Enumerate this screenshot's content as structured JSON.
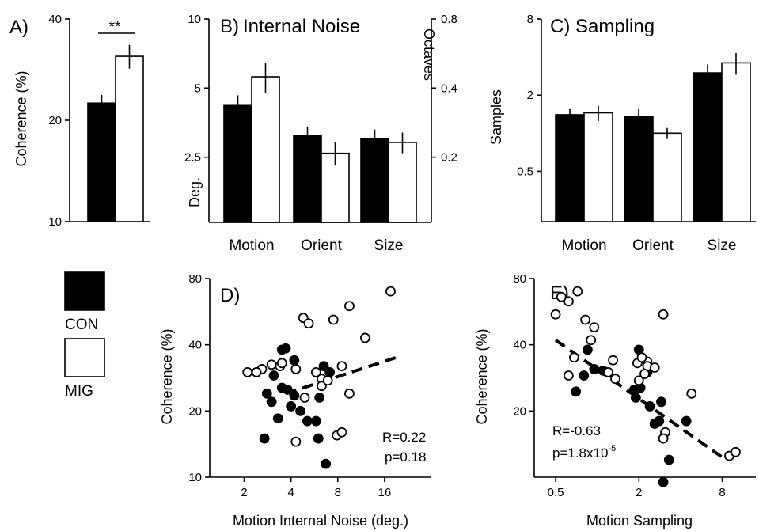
{
  "colors": {
    "CON": "#000000",
    "MIG": "#ffffff",
    "stroke": "#000000"
  },
  "legend": {
    "con_label": "CON",
    "mig_label": "MIG"
  },
  "chart_data": [
    {
      "panel": "A)",
      "type": "bar",
      "yscale": "log",
      "ylim": [
        10,
        40
      ],
      "yticks": [
        10,
        20,
        40
      ],
      "ylabel": "Coherence (%)",
      "categories": [
        ""
      ],
      "series": [
        {
          "name": "CON",
          "values": [
            22.5
          ],
          "errors": [
            1.3
          ]
        },
        {
          "name": "MIG",
          "values": [
            31
          ],
          "errors": [
            2.5
          ]
        }
      ],
      "annotation": "**"
    },
    {
      "panel": "B)",
      "title": "Internal Noise",
      "type": "bar",
      "yscale": "log",
      "ylim": [
        1.3,
        10
      ],
      "yticks": [
        2.5,
        5,
        10
      ],
      "ylabel": "Deg.",
      "y2ticks": [
        0.2,
        0.4,
        0.8
      ],
      "y2label": "Octaves",
      "categories": [
        "Motion",
        "Orient",
        "Size"
      ],
      "series": [
        {
          "name": "CON",
          "values": [
            4.2,
            3.1,
            3.0
          ],
          "errors": [
            0.45,
            0.3,
            0.3
          ]
        },
        {
          "name": "MIG",
          "values": [
            5.6,
            2.6,
            2.9
          ],
          "errors": [
            0.85,
            0.3,
            0.3
          ]
        }
      ]
    },
    {
      "panel": "C)",
      "title": "Sampling",
      "type": "bar",
      "yscale": "log",
      "ylim": [
        0.2,
        8
      ],
      "yticks": [
        0.5,
        2,
        8
      ],
      "ylabel": "Samples",
      "categories": [
        "Motion",
        "Orient",
        "Size"
      ],
      "series": [
        {
          "name": "CON",
          "values": [
            1.4,
            1.35,
            3.0
          ],
          "errors": [
            0.15,
            0.2,
            0.5
          ]
        },
        {
          "name": "MIG",
          "values": [
            1.45,
            1.0,
            3.6
          ],
          "errors": [
            0.2,
            0.1,
            0.7
          ]
        }
      ]
    },
    {
      "panel": "D)",
      "type": "scatter",
      "xscale": "log",
      "yscale": "log",
      "xlim": [
        1.2,
        32
      ],
      "ylim": [
        10,
        80
      ],
      "xticks": [
        2,
        4,
        8,
        16
      ],
      "yticks": [
        10,
        20,
        40,
        80
      ],
      "xlabel": "Motion Internal Noise (deg.)",
      "ylabel": "Coherence (%)",
      "series": [
        {
          "name": "CON",
          "points": [
            [
              3.5,
              38
            ],
            [
              3.7,
              38.5
            ],
            [
              4.2,
              34
            ],
            [
              6.5,
              32
            ],
            [
              7.1,
              30
            ],
            [
              3.1,
              29
            ],
            [
              3.5,
              25.5
            ],
            [
              3.8,
              25
            ],
            [
              2.8,
              24
            ],
            [
              4.2,
              23.5
            ],
            [
              6.1,
              23
            ],
            [
              3.0,
              22
            ],
            [
              4.0,
              21
            ],
            [
              4.6,
              20
            ],
            [
              3.3,
              18.5
            ],
            [
              5.1,
              18
            ],
            [
              5.8,
              18
            ],
            [
              2.7,
              15
            ],
            [
              6.0,
              15
            ],
            [
              6.7,
              11.5
            ]
          ]
        },
        {
          "name": "MIG",
          "points": [
            [
              17.5,
              70
            ],
            [
              9.5,
              60
            ],
            [
              4.8,
              53
            ],
            [
              7.5,
              52
            ],
            [
              5.2,
              50
            ],
            [
              12,
              43
            ],
            [
              3.4,
              32
            ],
            [
              3.5,
              33
            ],
            [
              2.6,
              31
            ],
            [
              3.0,
              32.5
            ],
            [
              4.3,
              31
            ],
            [
              5.8,
              30
            ],
            [
              6.3,
              28
            ],
            [
              2.4,
              30
            ],
            [
              8.5,
              32
            ],
            [
              2.1,
              30
            ],
            [
              6.3,
              26
            ],
            [
              6.9,
              27.5
            ],
            [
              9.5,
              24
            ],
            [
              4.9,
              23
            ],
            [
              4.3,
              14.5
            ],
            [
              7.9,
              15.5
            ],
            [
              8.5,
              16
            ]
          ]
        }
      ],
      "trend": [
        [
          3.7,
          24
        ],
        [
          19,
          35
        ]
      ],
      "stats": {
        "r": "R=0.22",
        "p": "p=0.18"
      }
    },
    {
      "panel": "E)",
      "type": "scatter",
      "xscale": "log",
      "yscale": "log",
      "xlim": [
        0.35,
        14
      ],
      "ylim": [
        10,
        80
      ],
      "xticks": [
        0.5,
        2,
        8
      ],
      "yticks": [
        20,
        40,
        80
      ],
      "xlabel": "Motion Sampling",
      "ylabel": "Coherence (%)",
      "series": [
        {
          "name": "CON",
          "points": [
            [
              0.85,
              38
            ],
            [
              2.0,
              38
            ],
            [
              0.95,
              31
            ],
            [
              1.1,
              30.5
            ],
            [
              2.3,
              30
            ],
            [
              0.8,
              29
            ],
            [
              1.85,
              25
            ],
            [
              0.7,
              24.5
            ],
            [
              2.05,
              25.5
            ],
            [
              1.9,
              23
            ],
            [
              2.4,
              21
            ],
            [
              2.9,
              22
            ],
            [
              2.8,
              18
            ],
            [
              2.6,
              17.5
            ],
            [
              4.4,
              18
            ],
            [
              3.3,
              12
            ],
            [
              3.0,
              9.5
            ]
          ]
        },
        {
          "name": "MIG",
          "points": [
            [
              0.72,
              70
            ],
            [
              0.62,
              63
            ],
            [
              0.55,
              66
            ],
            [
              0.5,
              55
            ],
            [
              0.82,
              52
            ],
            [
              0.95,
              48
            ],
            [
              3.0,
              55
            ],
            [
              0.68,
              35
            ],
            [
              0.9,
              42
            ],
            [
              1.3,
              34
            ],
            [
              1.95,
              33
            ],
            [
              2.3,
              33.5
            ],
            [
              2.1,
              35
            ],
            [
              2.3,
              32
            ],
            [
              2.6,
              31.5
            ],
            [
              0.62,
              29
            ],
            [
              1.2,
              30
            ],
            [
              2.2,
              29.5
            ],
            [
              1.35,
              28
            ],
            [
              2.0,
              27.5
            ],
            [
              4.8,
              24
            ],
            [
              3.1,
              16
            ],
            [
              3.0,
              15
            ],
            [
              9.0,
              12.5
            ],
            [
              10,
              13
            ]
          ]
        }
      ],
      "trend": [
        [
          0.5,
          42
        ],
        [
          8.5,
          12
        ]
      ],
      "stats": {
        "r": "R=-0.63",
        "p": "p=1.8x10",
        "p_exp": "-5"
      }
    }
  ]
}
